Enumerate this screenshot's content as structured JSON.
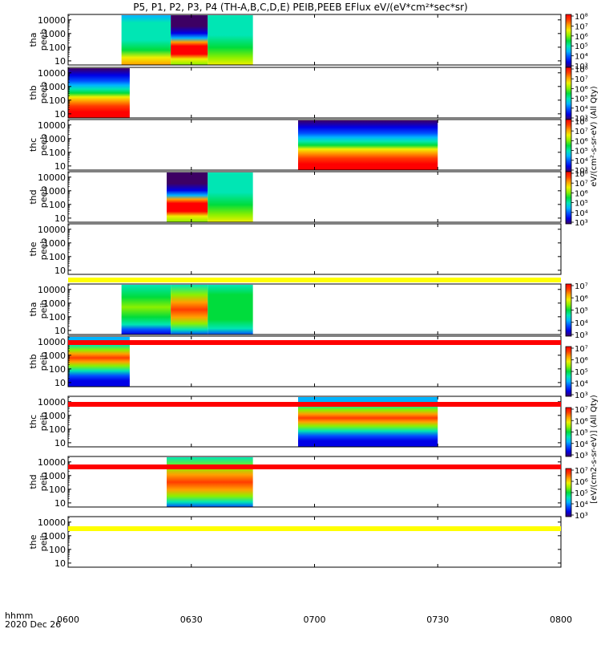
{
  "chart_data": {
    "type": "heatmap",
    "title": "P5, P1, P2, P3, P4 (TH-A,B,C,D,E) PEIB,PEEB EFlux eV/(eV*cm²*sec*sr)",
    "time_axis": {
      "label": "hhmm",
      "date": "2020 Dec 26",
      "range": [
        "0600",
        "0800"
      ],
      "ticks": [
        "0600",
        "0630",
        "0700",
        "0730",
        "0800"
      ]
    },
    "energy_axis": {
      "scale": "log",
      "unit": "eV",
      "range": [
        5,
        25000
      ],
      "ticks": [
        "10",
        "100",
        "1000",
        "10000"
      ]
    },
    "colorbar_labels": {
      "electron": "eV/(cm²-s-sr-eV) (All Qty)",
      "ion": "[eV/(cm2-s-sr-eV)] (All Qty)"
    },
    "electron_colorbar_ticks": [
      "10³",
      "10⁴",
      "10⁵",
      "10⁶",
      "10⁷",
      "10⁸"
    ],
    "ion_colorbar_ticks": [
      "10³",
      "10⁴",
      "10⁵",
      "10⁶",
      "10⁷"
    ],
    "panels": [
      {
        "probe": "tha",
        "instrument": "peeb",
        "species": "electron",
        "intervals": [
          {
            "start": "0613",
            "end": "0625",
            "mode": "fresh-left"
          },
          {
            "start": "0625",
            "end": "0634",
            "mode": "dark-hot"
          },
          {
            "start": "0634",
            "end": "0645",
            "mode": "fresh-right"
          }
        ]
      },
      {
        "probe": "thb",
        "instrument": "peeb",
        "species": "electron",
        "intervals": [
          {
            "start": "0600",
            "end": "0615",
            "mode": "magnetosheath"
          }
        ]
      },
      {
        "probe": "thc",
        "instrument": "peeb",
        "species": "electron",
        "intervals": [
          {
            "start": "0656",
            "end": "0730",
            "mode": "magnetosheath"
          }
        ]
      },
      {
        "probe": "thd",
        "instrument": "peeb",
        "species": "electron",
        "intervals": [
          {
            "start": "0624",
            "end": "0634",
            "mode": "dark-hot"
          },
          {
            "start": "0634",
            "end": "0645",
            "mode": "fresh-right"
          }
        ]
      },
      {
        "probe": "the",
        "instrument": "peeb",
        "species": "electron",
        "intervals": []
      },
      {
        "probe": "tha",
        "instrument": "peib",
        "species": "ion",
        "intervals": [
          {
            "start": "0613",
            "end": "0625",
            "mode": "ion-left"
          },
          {
            "start": "0625",
            "end": "0634",
            "mode": "ion-hot"
          },
          {
            "start": "0634",
            "end": "0645",
            "mode": "ion-right"
          }
        ]
      },
      {
        "probe": "thb",
        "instrument": "peib",
        "species": "ion",
        "intervals": [
          {
            "start": "0600",
            "end": "0615",
            "mode": "ion-sheath"
          }
        ]
      },
      {
        "probe": "thc",
        "instrument": "peib",
        "species": "ion",
        "intervals": [
          {
            "start": "0656",
            "end": "0730",
            "mode": "ion-sheath"
          }
        ]
      },
      {
        "probe": "thd",
        "instrument": "peib",
        "species": "ion",
        "intervals": [
          {
            "start": "0624",
            "end": "0645",
            "mode": "ion-hot"
          }
        ]
      },
      {
        "probe": "the",
        "instrument": "peib",
        "species": "ion",
        "intervals": []
      }
    ],
    "flag_bars": [
      {
        "after_panel": 4,
        "color": "#ffff00"
      },
      {
        "after_panel": 5,
        "color": "#ff0000"
      },
      {
        "after_panel": 6,
        "color": "#ff0000"
      },
      {
        "after_panel": 7,
        "color": "#ff0000"
      },
      {
        "after_panel": 8,
        "color": "#ffff00"
      }
    ],
    "colors": {
      "rainbow": [
        "#3d0063",
        "#0000e6",
        "#0050ff",
        "#00b4ff",
        "#00e6b4",
        "#00dc3c",
        "#8cf000",
        "#f0f000",
        "#ffa000",
        "#ff3c00",
        "#ff0000"
      ]
    }
  }
}
